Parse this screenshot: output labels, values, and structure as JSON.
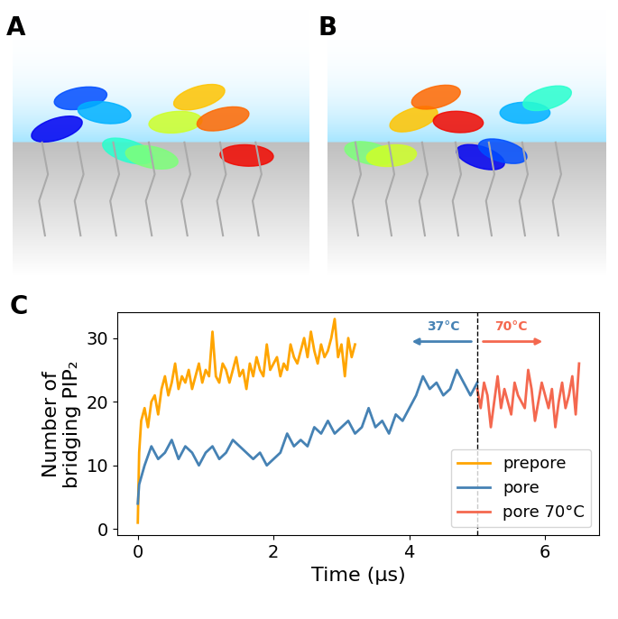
{
  "panel_labels": [
    "A",
    "B",
    "C"
  ],
  "chart_data": {
    "type": "line",
    "x_label": "Time (μs)",
    "y_label": "Number of\nbridging PIP₂",
    "xlim": [
      -0.3,
      6.8
    ],
    "xticks": [
      0,
      2,
      4,
      6
    ],
    "ylim": [
      -1,
      34
    ],
    "yticks": [
      0,
      10,
      20,
      30
    ],
    "vlines": [
      5
    ],
    "annotations": [
      "37°C",
      "70°C"
    ],
    "legend": "lower right",
    "grid": false,
    "series": [
      {
        "name": "prepore",
        "color": "#ffa500",
        "x": [
          0,
          0.02,
          0.05,
          0.1,
          0.15,
          0.2,
          0.25,
          0.3,
          0.35,
          0.4,
          0.45,
          0.5,
          0.55,
          0.6,
          0.65,
          0.7,
          0.75,
          0.8,
          0.85,
          0.9,
          0.95,
          1.0,
          1.05,
          1.1,
          1.15,
          1.2,
          1.25,
          1.3,
          1.35,
          1.4,
          1.45,
          1.5,
          1.55,
          1.6,
          1.65,
          1.7,
          1.75,
          1.8,
          1.85,
          1.9,
          1.95,
          2.0,
          2.05,
          2.1,
          2.15,
          2.2,
          2.25,
          2.3,
          2.35,
          2.4,
          2.45,
          2.5,
          2.55,
          2.6,
          2.65,
          2.7,
          2.75,
          2.8,
          2.85,
          2.9,
          2.95,
          3.0,
          3.05,
          3.1,
          3.15,
          3.2
        ],
        "values": [
          1,
          12,
          17,
          19,
          16,
          20,
          21,
          18,
          22,
          24,
          21,
          23,
          26,
          22,
          24,
          23,
          25,
          22,
          24,
          26,
          23,
          25,
          24,
          31,
          24,
          23,
          26,
          25,
          23,
          25,
          27,
          24,
          25,
          22,
          26,
          24,
          27,
          25,
          24,
          29,
          25,
          26,
          27,
          24,
          26,
          25,
          29,
          27,
          26,
          28,
          30,
          27,
          31,
          28,
          26,
          29,
          27,
          28,
          30,
          33,
          27,
          29,
          24,
          30,
          27,
          29
        ]
      },
      {
        "name": "pore",
        "color": "#4682b4",
        "x": [
          0,
          0.02,
          0.1,
          0.2,
          0.3,
          0.4,
          0.5,
          0.6,
          0.7,
          0.8,
          0.9,
          1.0,
          1.1,
          1.2,
          1.3,
          1.4,
          1.5,
          1.6,
          1.7,
          1.8,
          1.9,
          2.0,
          2.1,
          2.2,
          2.3,
          2.4,
          2.5,
          2.6,
          2.7,
          2.8,
          2.9,
          3.0,
          3.1,
          3.2,
          3.3,
          3.4,
          3.5,
          3.6,
          3.7,
          3.8,
          3.9,
          4.0,
          4.1,
          4.2,
          4.3,
          4.4,
          4.5,
          4.6,
          4.7,
          4.8,
          4.9,
          5.0
        ],
        "values": [
          4,
          7,
          10,
          13,
          11,
          12,
          14,
          11,
          13,
          12,
          10,
          12,
          13,
          11,
          12,
          14,
          13,
          12,
          11,
          12,
          10,
          11,
          12,
          15,
          13,
          14,
          13,
          16,
          15,
          17,
          15,
          16,
          17,
          15,
          16,
          19,
          16,
          17,
          15,
          18,
          17,
          19,
          21,
          24,
          22,
          23,
          21,
          22,
          25,
          23,
          21,
          23
        ]
      },
      {
        "name": "pore 70°C",
        "color": "#f4684f",
        "x": [
          5.0,
          5.05,
          5.1,
          5.15,
          5.2,
          5.25,
          5.3,
          5.35,
          5.4,
          5.45,
          5.5,
          5.55,
          5.6,
          5.65,
          5.7,
          5.75,
          5.8,
          5.85,
          5.9,
          5.95,
          6.0,
          6.05,
          6.1,
          6.15,
          6.2,
          6.25,
          6.3,
          6.35,
          6.4,
          6.45,
          6.5
        ],
        "values": [
          22,
          19,
          23,
          21,
          16,
          20,
          24,
          19,
          22,
          20,
          18,
          23,
          21,
          20,
          19,
          25,
          22,
          17,
          20,
          23,
          21,
          19,
          22,
          16,
          20,
          23,
          19,
          21,
          24,
          18,
          26
        ]
      }
    ]
  }
}
